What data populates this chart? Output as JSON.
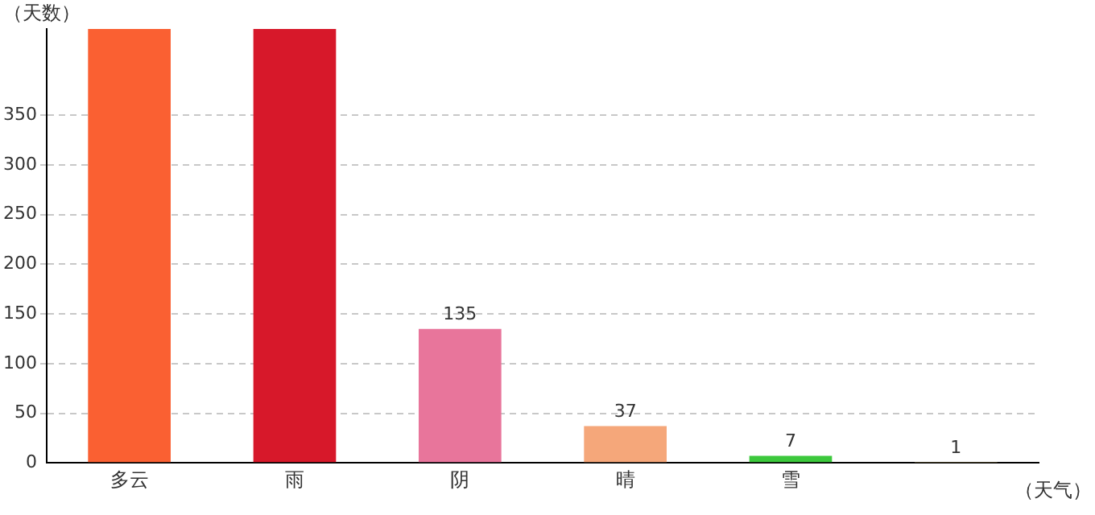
{
  "chart_data": {
    "type": "bar",
    "ylabel": "（天数）",
    "xlabel": "（天气）",
    "categories": [
      "多云",
      "雨",
      "阴",
      "晴",
      "雪",
      null
    ],
    "values": [
      437,
      437,
      135,
      37,
      7,
      1
    ],
    "colors": [
      "#fa6032",
      "#d7182a",
      "#e8759b",
      "#f5a77a",
      "#3cc83c",
      "#fbe38c"
    ],
    "value_labels": [
      null,
      null,
      "135",
      "37",
      "7",
      "1"
    ],
    "ylim": [
      0,
      437
    ],
    "yticks": [
      0,
      50,
      100,
      150,
      200,
      250,
      300,
      350
    ],
    "grid": "y",
    "legend": false
  }
}
